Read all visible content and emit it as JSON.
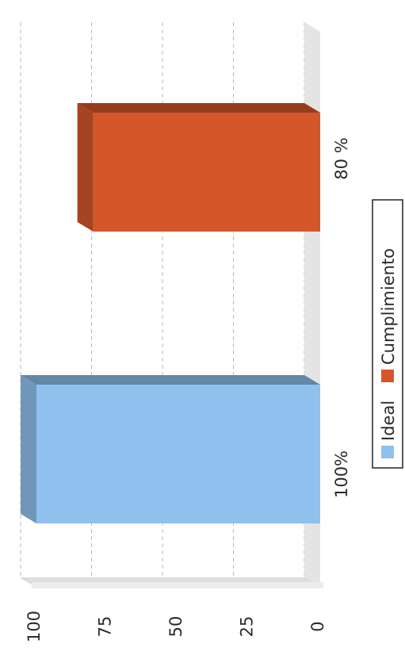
{
  "chart_data": {
    "type": "bar",
    "orientation": "horizontal-rotated-3d",
    "categories": [
      "100%",
      "80 %"
    ],
    "series": [
      {
        "name": "Ideal",
        "values": [
          100,
          null
        ],
        "color": "#8fc0ee"
      },
      {
        "name": "Cumplimiento",
        "values": [
          null,
          80
        ],
        "color": "#d3572a"
      }
    ],
    "value_axis": {
      "ticks": [
        "0",
        "25",
        "50",
        "75",
        "100"
      ],
      "min": 0,
      "max": 100
    },
    "grid": true,
    "legend_position": "bottom"
  }
}
